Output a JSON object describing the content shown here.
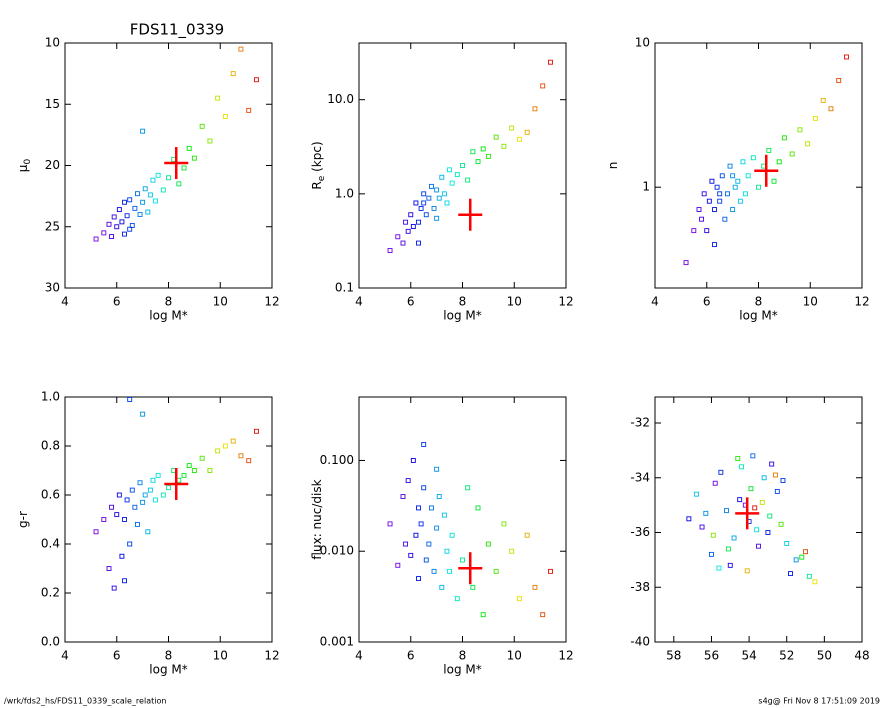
{
  "title": "FDS11_0339",
  "footer": {
    "left": "/wrk/fds2_hs/FDS11_0339_scale_relation",
    "right": "s4g@  Fri Nov  8 17:51:09 2019"
  },
  "chart_data": [
    {
      "type": "scatter",
      "xlabel": "log M*",
      "ylabel": [
        "μ",
        "0"
      ],
      "colormap": "rainbow",
      "xlim": [
        4,
        12
      ],
      "xticks": [
        4,
        6,
        8,
        10,
        12
      ],
      "ylim": [
        30,
        10
      ],
      "yticks": [
        10,
        15,
        20,
        25,
        30
      ],
      "log_y": false,
      "x": [
        5.2,
        5.5,
        5.7,
        5.8,
        5.9,
        6.0,
        6.1,
        6.2,
        6.3,
        6.3,
        6.4,
        6.5,
        6.6,
        6.7,
        6.8,
        6.9,
        7.0,
        7.1,
        7.2,
        7.3,
        7.4,
        7.5,
        7.6,
        7.8,
        8.0,
        8.2,
        8.4,
        8.6,
        8.8,
        9.0,
        9.3,
        9.6,
        9.9,
        10.2,
        10.5,
        10.8,
        11.1,
        11.4,
        7.0,
        6.5
      ],
      "y": [
        26.0,
        25.5,
        24.8,
        25.8,
        24.2,
        25.0,
        23.6,
        24.6,
        23.0,
        25.6,
        24.1,
        22.8,
        24.9,
        23.5,
        22.3,
        24.0,
        23.0,
        21.9,
        23.8,
        22.4,
        21.2,
        22.9,
        20.8,
        22.0,
        21.0,
        19.5,
        21.5,
        20.2,
        18.6,
        19.4,
        16.8,
        18.0,
        14.5,
        16.0,
        12.5,
        10.5,
        15.5,
        13.0,
        17.2,
        25.2
      ],
      "highlight": {
        "x": 8.3,
        "y": 19.8,
        "color": "#ff0000"
      }
    },
    {
      "type": "scatter",
      "xlabel": "log M*",
      "ylabel": [
        "R",
        "e",
        " (kpc)"
      ],
      "xlim": [
        4,
        12
      ],
      "xticks": [
        4,
        6,
        8,
        10,
        12
      ],
      "ylim": [
        0.1,
        40
      ],
      "yticks": [
        0.1,
        {
          "value": 1,
          "label": "1.0"
        },
        {
          "value": 10,
          "label": "10.0"
        }
      ],
      "log_y": true,
      "x": [
        5.2,
        5.5,
        5.7,
        5.8,
        5.9,
        6.0,
        6.1,
        6.2,
        6.3,
        6.3,
        6.4,
        6.5,
        6.6,
        6.7,
        6.8,
        6.9,
        7.0,
        7.1,
        7.2,
        7.3,
        7.4,
        7.5,
        7.6,
        7.8,
        8.0,
        8.2,
        8.4,
        8.6,
        8.8,
        9.0,
        9.3,
        9.6,
        9.9,
        10.2,
        10.5,
        10.8,
        11.1,
        11.4,
        7.0,
        6.5
      ],
      "y": [
        0.25,
        0.35,
        0.3,
        0.5,
        0.4,
        0.6,
        0.45,
        0.8,
        0.5,
        0.3,
        0.7,
        1.0,
        0.6,
        0.9,
        1.2,
        0.7,
        1.1,
        0.9,
        1.5,
        1.0,
        0.8,
        1.8,
        1.3,
        1.6,
        2.0,
        1.4,
        2.8,
        2.2,
        3.0,
        2.5,
        4.0,
        3.2,
        5.0,
        3.8,
        4.5,
        8.0,
        14,
        25,
        0.55,
        0.8
      ],
      "highlight": {
        "x": 8.3,
        "y": 0.6,
        "color": "#ff0000"
      }
    },
    {
      "type": "scatter",
      "xlabel": "log M*",
      "ylabel": [
        "n"
      ],
      "xlim": [
        4,
        12
      ],
      "xticks": [
        4,
        6,
        8,
        10,
        12
      ],
      "ylim": [
        0.2,
        10
      ],
      "yticks": [
        1,
        10
      ],
      "log_y": true,
      "x": [
        5.2,
        5.5,
        5.7,
        5.8,
        5.9,
        6.0,
        6.1,
        6.2,
        6.3,
        6.3,
        6.4,
        6.5,
        6.6,
        6.7,
        6.8,
        6.9,
        7.0,
        7.1,
        7.2,
        7.3,
        7.4,
        7.5,
        7.6,
        7.8,
        8.0,
        8.2,
        8.4,
        8.6,
        8.8,
        9.0,
        9.3,
        9.6,
        9.9,
        10.2,
        10.5,
        10.8,
        11.1,
        11.4,
        7.0,
        6.5
      ],
      "y": [
        0.3,
        0.5,
        0.7,
        0.6,
        0.9,
        0.5,
        0.8,
        1.1,
        0.7,
        0.4,
        1.0,
        0.8,
        1.2,
        0.6,
        0.9,
        1.4,
        0.7,
        1.0,
        1.1,
        0.8,
        1.5,
        0.9,
        1.2,
        1.6,
        1.0,
        1.4,
        1.8,
        1.1,
        1.5,
        2.2,
        1.7,
        2.5,
        2.0,
        3.0,
        4.0,
        3.5,
        5.5,
        8.0,
        1.2,
        0.9
      ],
      "highlight": {
        "x": 8.3,
        "y": 1.3,
        "color": "#ff0000"
      }
    },
    {
      "type": "scatter",
      "xlabel": "log M*",
      "ylabel": [
        "g-r"
      ],
      "xlim": [
        4,
        12
      ],
      "xticks": [
        4,
        6,
        8,
        10,
        12
      ],
      "ylim": [
        0,
        1
      ],
      "yticks": [
        {
          "value": 0,
          "label": "0.0"
        },
        0.2,
        0.4,
        0.6,
        0.8,
        {
          "value": 1,
          "label": "1.0"
        }
      ],
      "log_y": false,
      "x": [
        5.2,
        5.5,
        5.7,
        5.8,
        5.9,
        6.0,
        6.1,
        6.2,
        6.3,
        6.3,
        6.4,
        6.5,
        6.6,
        6.7,
        6.8,
        6.9,
        7.0,
        7.1,
        7.2,
        7.3,
        7.4,
        7.5,
        7.6,
        7.8,
        8.0,
        8.2,
        8.4,
        8.6,
        8.8,
        9.0,
        9.3,
        9.6,
        9.9,
        10.2,
        10.5,
        10.8,
        11.1,
        11.4,
        7.0,
        6.5
      ],
      "y": [
        0.45,
        0.5,
        0.3,
        0.55,
        0.22,
        0.52,
        0.6,
        0.35,
        0.5,
        0.25,
        0.58,
        0.4,
        0.62,
        0.55,
        0.48,
        0.65,
        0.57,
        0.6,
        0.45,
        0.62,
        0.66,
        0.58,
        0.68,
        0.6,
        0.63,
        0.7,
        0.66,
        0.68,
        0.72,
        0.7,
        0.75,
        0.7,
        0.78,
        0.8,
        0.82,
        0.76,
        0.74,
        0.86,
        0.93,
        0.99
      ],
      "highlight": {
        "x": 8.3,
        "y": 0.645,
        "color": "#ff0000"
      }
    },
    {
      "type": "scatter",
      "xlabel": "log M*",
      "ylabel": [
        "flux: nuc/disk"
      ],
      "xlim": [
        4,
        12
      ],
      "xticks": [
        4,
        6,
        8,
        10,
        12
      ],
      "ylim": [
        0.001,
        0.5
      ],
      "yticks": [
        0.001,
        {
          "value": 0.01,
          "label": "0.010"
        },
        {
          "value": 0.1,
          "label": "0.100"
        }
      ],
      "log_y": true,
      "x": [
        5.2,
        5.5,
        5.7,
        5.8,
        5.9,
        6.0,
        6.1,
        6.2,
        6.3,
        6.3,
        6.4,
        6.5,
        6.6,
        6.7,
        6.8,
        6.9,
        7.0,
        7.1,
        7.2,
        7.3,
        7.4,
        7.5,
        7.6,
        7.8,
        8.0,
        8.2,
        8.4,
        8.6,
        8.8,
        9.0,
        9.3,
        9.6,
        9.9,
        10.2,
        10.5,
        10.8,
        11.1,
        11.4,
        7.0,
        6.5
      ],
      "y": [
        0.02,
        0.007,
        0.04,
        0.012,
        0.06,
        0.009,
        0.1,
        0.015,
        0.03,
        0.005,
        0.02,
        0.05,
        0.008,
        0.012,
        0.03,
        0.006,
        0.018,
        0.04,
        0.004,
        0.025,
        0.01,
        0.006,
        0.015,
        0.003,
        0.008,
        0.05,
        0.004,
        0.03,
        0.002,
        0.012,
        0.006,
        0.02,
        0.01,
        0.003,
        0.015,
        0.004,
        0.002,
        0.006,
        0.08,
        0.15
      ],
      "highlight": {
        "x": 8.3,
        "y": 0.0065,
        "color": "#ff0000"
      }
    },
    {
      "type": "scatter",
      "xlim": [
        59,
        48
      ],
      "xticks": [
        58,
        56,
        54,
        52,
        50,
        48
      ],
      "ylim": [
        -40,
        -31.05
      ],
      "yticks": [
        -40,
        -38,
        -36,
        -34,
        -32
      ],
      "log_y": false,
      "x": [
        54.2,
        55.8,
        53.5,
        56.5,
        52.8,
        55.0,
        54.5,
        57.2,
        53.0,
        51.8,
        55.5,
        54.0,
        52.5,
        56.0,
        53.8,
        55.2,
        51.5,
        54.8,
        53.2,
        56.8,
        52.0,
        55.6,
        53.6,
        54.4,
        50.8,
        52.9,
        55.1,
        53.9,
        51.2,
        54.6,
        52.3,
        55.9,
        53.3,
        50.5,
        54.1,
        52.6,
        51.0,
        53.7,
        56.3,
        52.2
      ],
      "y": [
        -35.0,
        -34.2,
        -36.5,
        -35.8,
        -33.5,
        -37.2,
        -34.8,
        -35.5,
        -36.0,
        -37.5,
        -33.8,
        -35.6,
        -34.5,
        -36.8,
        -33.2,
        -35.2,
        -37.0,
        -36.2,
        -34.0,
        -34.6,
        -36.4,
        -37.3,
        -35.9,
        -33.6,
        -37.6,
        -35.4,
        -36.6,
        -34.4,
        -36.9,
        -33.3,
        -35.7,
        -36.1,
        -34.9,
        -37.8,
        -37.4,
        -33.9,
        -36.7,
        -35.1,
        -35.3,
        -34.1
      ],
      "highlight": {
        "x": 54.1,
        "y": -35.3,
        "color": "#ff0000"
      }
    }
  ]
}
